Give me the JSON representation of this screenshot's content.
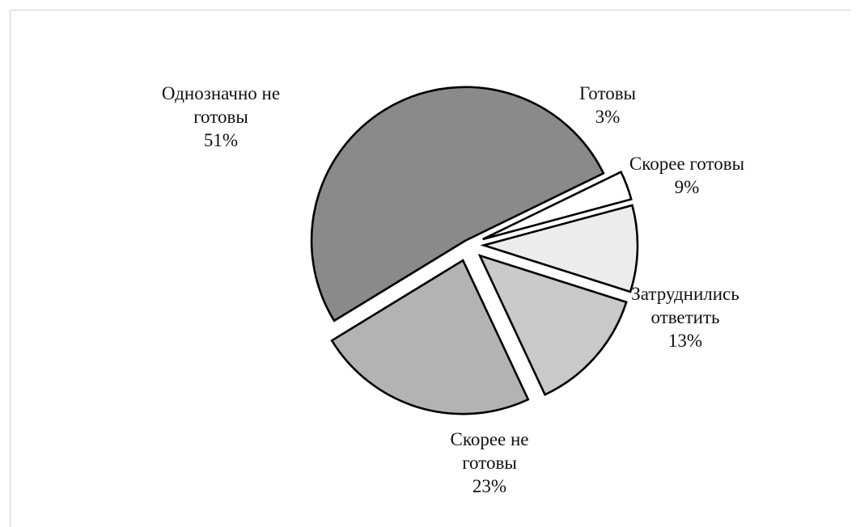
{
  "chart_data": {
    "type": "pie",
    "exploded": true,
    "slices": [
      {
        "category": "Готовы",
        "value": 3,
        "value_label": "3%",
        "label_lines": [
          "Готовы",
          "3%"
        ],
        "color": "#ffffff"
      },
      {
        "category": "Скорее готовы",
        "value": 9,
        "value_label": "9%",
        "label_lines": [
          "Скорее готовы",
          "9%"
        ],
        "color": "#ececec"
      },
      {
        "category": "Затруднились ответить",
        "value": 13,
        "value_label": "13%",
        "label_lines": [
          "Затруднились",
          "ответить",
          "13%"
        ],
        "color": "#c9c9c9"
      },
      {
        "category": "Скорее не готовы",
        "value": 23,
        "value_label": "23%",
        "label_lines": [
          "Скорее не",
          "готовы",
          "23%"
        ],
        "color": "#b3b3b3"
      },
      {
        "category": "Однозначно не готовы",
        "value": 51,
        "value_label": "51%",
        "label_lines": [
          "Однозначно не",
          "готовы",
          "51%"
        ],
        "color": "#8a8a8a"
      }
    ]
  }
}
